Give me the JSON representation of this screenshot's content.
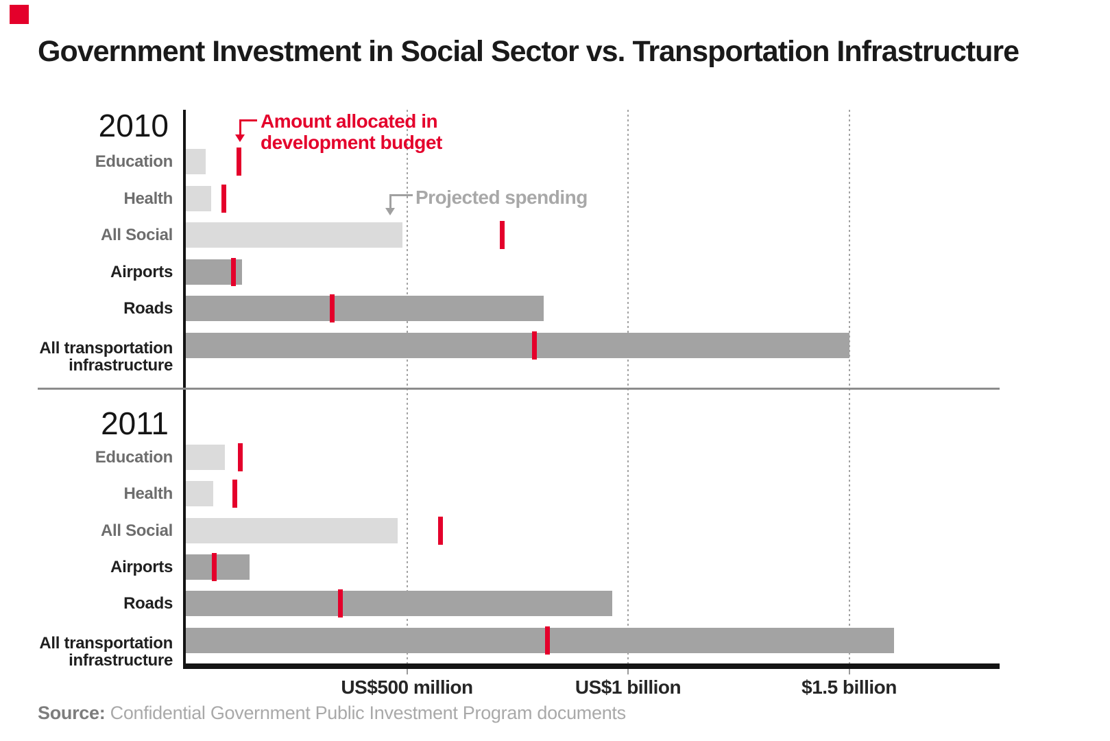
{
  "brand_color": "#e4002b",
  "title": "Government Investment in Social Sector vs. Transportation Infrastructure",
  "annotations": {
    "allocated_line1": "Amount allocated in",
    "allocated_line2": "development budget",
    "projected": "Projected spending"
  },
  "source": {
    "label": "Source:",
    "text": " Confidential Government Public Investment Program documents"
  },
  "chart_data": {
    "type": "bar",
    "orientation": "horizontal",
    "unit": "US$ million",
    "title": "Government Investment in Social Sector vs. Transportation Infrastructure",
    "legend": [
      {
        "name": "Projected spending",
        "mark": "gray bar"
      },
      {
        "name": "Amount allocated in development budget",
        "mark": "red tick"
      }
    ],
    "x_axis": {
      "min": 0,
      "max": 1840,
      "grid": true,
      "ticks": [
        {
          "value": 500,
          "label": "US$500 million"
        },
        {
          "value": 1000,
          "label": "US$1 billion"
        },
        {
          "value": 1500,
          "label": "$1.5 billion"
        }
      ]
    },
    "colors": {
      "social_bar": "#dbdbdb",
      "transport_bar": "#a3a3a3",
      "allocated_tick": "#e4002b",
      "social_label": "#6d6d6d",
      "transport_label": "#1f1f1f"
    },
    "panels": [
      {
        "year": "2010",
        "rows": [
          {
            "label": "Education",
            "group": "social",
            "projected": 45,
            "allocated": 120
          },
          {
            "label": "Health",
            "group": "social",
            "projected": 58,
            "allocated": 86
          },
          {
            "label": "All Social",
            "group": "social",
            "projected": 490,
            "allocated": 716
          },
          {
            "label": "Airports",
            "group": "transport",
            "projected": 127,
            "allocated": 107
          },
          {
            "label": "Roads",
            "group": "transport",
            "projected": 810,
            "allocated": 331
          },
          {
            "label": "All transportation",
            "label2": "infrastructure",
            "group": "transport",
            "projected": 1500,
            "allocated": 789
          }
        ]
      },
      {
        "year": "2011",
        "rows": [
          {
            "label": "Education",
            "group": "social",
            "projected": 89,
            "allocated": 123
          },
          {
            "label": "Health",
            "group": "social",
            "projected": 62,
            "allocated": 111
          },
          {
            "label": "All Social",
            "group": "social",
            "projected": 479,
            "allocated": 576
          },
          {
            "label": "Airports",
            "group": "transport",
            "projected": 144,
            "allocated": 64
          },
          {
            "label": "Roads",
            "group": "transport",
            "projected": 965,
            "allocated": 350
          },
          {
            "label": "All transportation",
            "label2": "infrastructure",
            "group": "transport",
            "projected": 1602,
            "allocated": 818
          }
        ]
      }
    ]
  }
}
